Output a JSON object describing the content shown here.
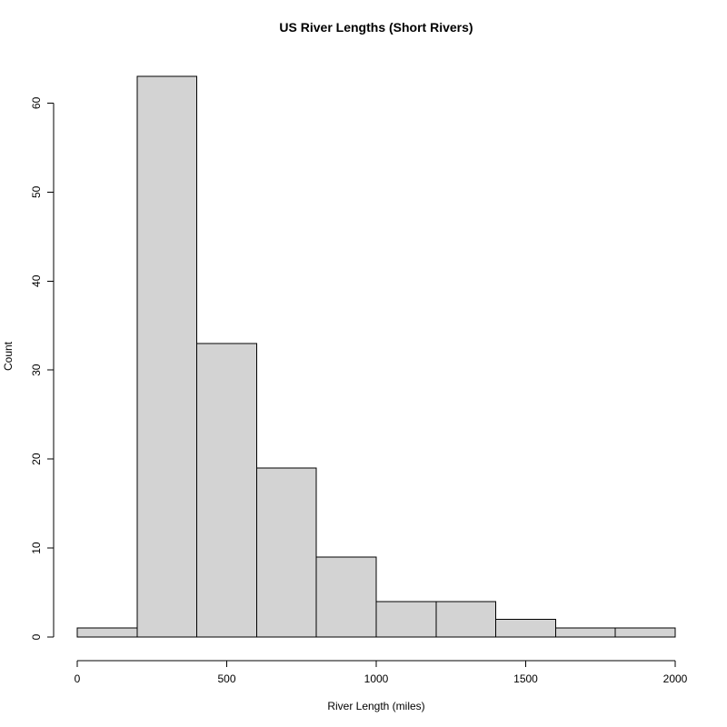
{
  "chart_data": {
    "type": "bar",
    "title": "US River Lengths (Short Rivers)",
    "xlabel": "River Length (miles)",
    "ylabel": "Count",
    "xlim": [
      0,
      2000
    ],
    "ylim": [
      0,
      63
    ],
    "grid": false,
    "bins": [
      [
        0,
        200
      ],
      [
        200,
        400
      ],
      [
        400,
        600
      ],
      [
        600,
        800
      ],
      [
        800,
        1000
      ],
      [
        1000,
        1200
      ],
      [
        1200,
        1400
      ],
      [
        1400,
        1600
      ],
      [
        1600,
        1800
      ],
      [
        1800,
        2000
      ]
    ],
    "values": [
      1,
      63,
      33,
      19,
      9,
      4,
      4,
      2,
      1,
      1
    ],
    "x_ticks": [
      0,
      500,
      1000,
      1500,
      2000
    ],
    "y_ticks": [
      0,
      10,
      20,
      30,
      40,
      50,
      60
    ],
    "bar_color": "#d3d3d3",
    "edge_color": "#000000"
  }
}
